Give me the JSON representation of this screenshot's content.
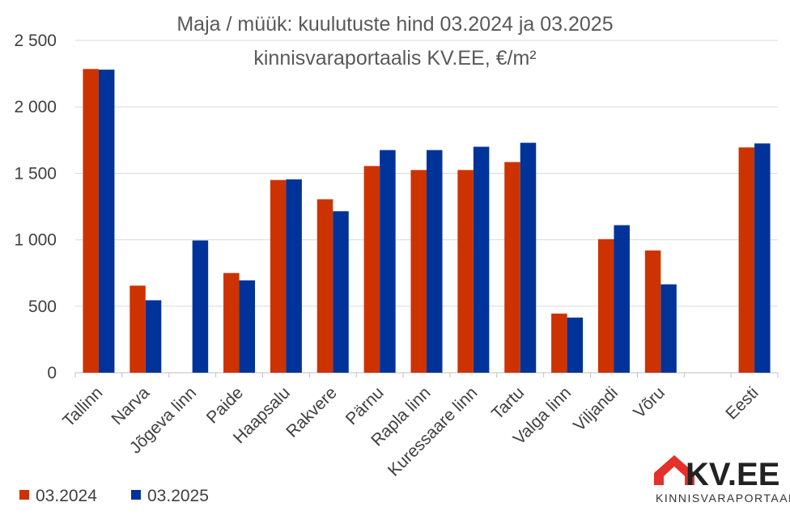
{
  "chart_data": {
    "type": "bar",
    "title": "Maja / müük: kuulutuste hind 03.2024 ja 03.2025",
    "subtitle": "kinnisvaraportaalis KV.EE, €/m²",
    "categories": [
      "Tallinn",
      "Narva",
      "Jõgeva linn",
      "Paide",
      "Haapsalu",
      "Rakvere",
      "Pärnu",
      "Rapla linn",
      "Kuressaare linn",
      "Tartu",
      "Valga linn",
      "Viljandi",
      "Võru",
      "",
      "Eesti"
    ],
    "series": [
      {
        "name": "03.2024",
        "color": "#CC3300",
        "values": [
          2285,
          655,
          null,
          750,
          1450,
          1305,
          1555,
          1525,
          1525,
          1585,
          445,
          1005,
          920,
          null,
          1695
        ]
      },
      {
        "name": "03.2025",
        "color": "#003399",
        "values": [
          2280,
          545,
          995,
          695,
          1455,
          1215,
          1675,
          1675,
          1700,
          1730,
          415,
          1110,
          665,
          null,
          1725
        ]
      }
    ],
    "yticks": [
      "0",
      "500",
      "1 000",
      "1 500",
      "2 000",
      "2 500"
    ],
    "ylim": [
      0,
      2500
    ],
    "grid": true,
    "legend_position": "bottom-left"
  },
  "logo": {
    "brand": "KV.EE",
    "tagline": "KINNISVARAPORTAAL",
    "red": "#E4312B",
    "text_color": "#222222"
  }
}
